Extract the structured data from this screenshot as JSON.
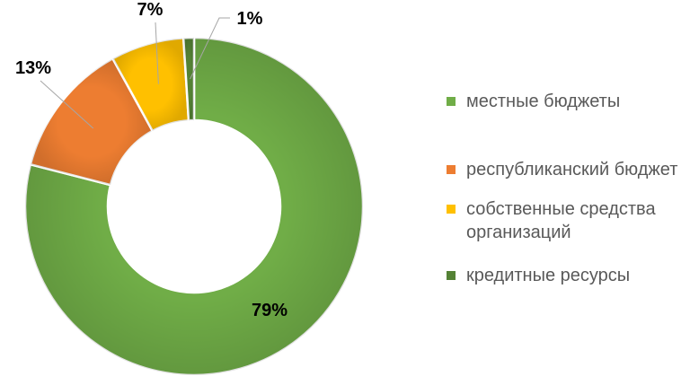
{
  "chart_data": {
    "type": "donut",
    "categories": [
      "местные бюджеты",
      "республиканский бюджет",
      "собственные средства организаций",
      "кредитные ресурсы"
    ],
    "values": [
      79,
      13,
      7,
      1
    ],
    "labels": [
      "79%",
      "13%",
      "7%",
      "1%"
    ],
    "colors": [
      "#70AD47",
      "#ED7D31",
      "#FFC000",
      "#548235"
    ],
    "unit": "%",
    "legend_position": "right"
  }
}
